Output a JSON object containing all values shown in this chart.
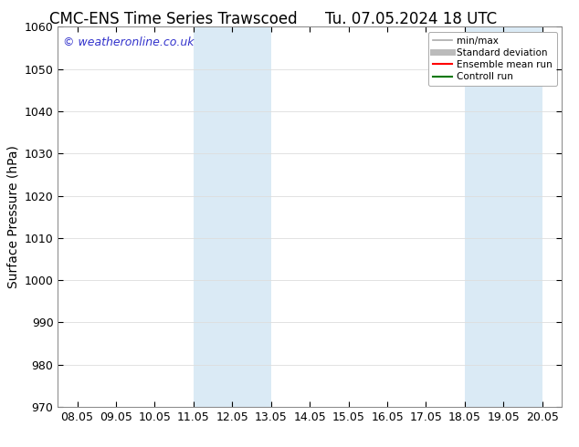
{
  "title_left": "CMC-ENS Time Series Trawscoed",
  "title_right": "Tu. 07.05.2024 18 UTC",
  "ylabel": "Surface Pressure (hPa)",
  "ylim": [
    970,
    1060
  ],
  "yticks": [
    970,
    980,
    990,
    1000,
    1010,
    1020,
    1030,
    1040,
    1050,
    1060
  ],
  "xtick_labels": [
    "08.05",
    "09.05",
    "10.05",
    "11.05",
    "12.05",
    "13.05",
    "14.05",
    "15.05",
    "16.05",
    "17.05",
    "18.05",
    "19.05",
    "20.05"
  ],
  "xtick_positions": [
    0,
    1,
    2,
    3,
    4,
    5,
    6,
    7,
    8,
    9,
    10,
    11,
    12
  ],
  "xlim": [
    -0.5,
    12.5
  ],
  "shade_regions": [
    {
      "x_start": 3.0,
      "x_end": 5.0,
      "color": "#daeaf5"
    },
    {
      "x_start": 10.0,
      "x_end": 12.0,
      "color": "#daeaf5"
    }
  ],
  "watermark_text": "© weatheronline.co.uk",
  "watermark_color": "#3333cc",
  "legend_entries": [
    {
      "label": "min/max",
      "color": "#aaaaaa",
      "lw": 1.2,
      "ls": "-"
    },
    {
      "label": "Standard deviation",
      "color": "#bbbbbb",
      "lw": 5,
      "ls": "-"
    },
    {
      "label": "Ensemble mean run",
      "color": "#ff0000",
      "lw": 1.5,
      "ls": "-"
    },
    {
      "label": "Controll run",
      "color": "#007700",
      "lw": 1.5,
      "ls": "-"
    }
  ],
  "bg_color": "#ffffff",
  "plot_bg_color": "#ffffff",
  "grid_color": "#dddddd",
  "title_fontsize": 12,
  "tick_fontsize": 9,
  "ylabel_fontsize": 10
}
